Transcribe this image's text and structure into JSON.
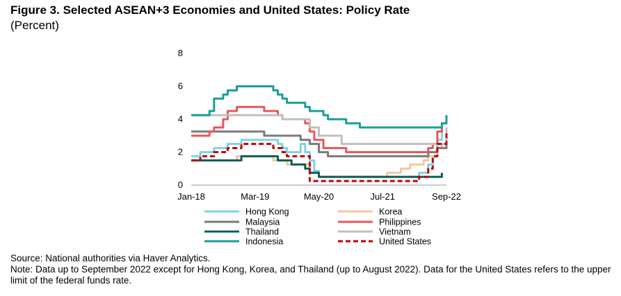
{
  "title": "Figure 3. Selected ASEAN+3 Economies and United States: Policy Rate",
  "subtitle": "(Percent)",
  "source": "Source: National authorities via Haver Analytics.",
  "note": "Note: Data up to September 2022 except for Hong Kong, Korea, and Thailand (up to August 2022). Data for the United States refers to the upper limit of the federal funds rate.",
  "chart_data": {
    "type": "line",
    "y_ticks": [
      0,
      2,
      4,
      6,
      8
    ],
    "ylim": [
      0,
      8
    ],
    "x_start": "2018-01",
    "x_end": "2022-09",
    "x_tick_labels": [
      {
        "label": "Jan-18",
        "month": "2018-01"
      },
      {
        "label": "Mar-19",
        "month": "2019-03"
      },
      {
        "label": "May-20",
        "month": "2020-05"
      },
      {
        "label": "Jul-21",
        "month": "2021-07"
      },
      {
        "label": "Sep-22",
        "month": "2022-09"
      }
    ],
    "legend_position": "bottom",
    "series": [
      {
        "name": "Hong Kong",
        "color": "#7fd3e3",
        "dashed": false,
        "points": [
          [
            "2018-01",
            1.75
          ],
          [
            "2018-03",
            2.0
          ],
          [
            "2018-06",
            2.25
          ],
          [
            "2018-09",
            2.5
          ],
          [
            "2018-12",
            2.75
          ],
          [
            "2019-07",
            2.75
          ],
          [
            "2019-08",
            2.5
          ],
          [
            "2019-09",
            2.25
          ],
          [
            "2019-10",
            2.0
          ],
          [
            "2019-12",
            2.0
          ],
          [
            "2020-01",
            2.5
          ],
          [
            "2020-02",
            2.0
          ],
          [
            "2020-03",
            1.5
          ],
          [
            "2020-04",
            0.86
          ],
          [
            "2020-05",
            0.5
          ],
          [
            "2022-03",
            0.75
          ],
          [
            "2022-05",
            1.25
          ],
          [
            "2022-06",
            1.75
          ],
          [
            "2022-07",
            2.75
          ],
          [
            "2022-08",
            3.5
          ]
        ]
      },
      {
        "name": "Korea",
        "color": "#f5c6a0",
        "dashed": false,
        "points": [
          [
            "2018-01",
            1.5
          ],
          [
            "2018-11",
            1.75
          ],
          [
            "2019-07",
            1.5
          ],
          [
            "2019-10",
            1.25
          ],
          [
            "2020-03",
            0.75
          ],
          [
            "2020-05",
            0.5
          ],
          [
            "2021-08",
            0.75
          ],
          [
            "2021-11",
            1.0
          ],
          [
            "2022-01",
            1.25
          ],
          [
            "2022-04",
            1.5
          ],
          [
            "2022-05",
            1.75
          ],
          [
            "2022-07",
            2.25
          ],
          [
            "2022-08",
            2.5
          ]
        ]
      },
      {
        "name": "Malaysia",
        "color": "#7a7a7a",
        "dashed": false,
        "points": [
          [
            "2018-01",
            3.25
          ],
          [
            "2019-05",
            3.0
          ],
          [
            "2019-12",
            3.0
          ],
          [
            "2020-01",
            2.75
          ],
          [
            "2020-03",
            2.5
          ],
          [
            "2020-05",
            2.0
          ],
          [
            "2020-07",
            1.75
          ],
          [
            "2022-05",
            2.0
          ],
          [
            "2022-07",
            2.25
          ],
          [
            "2022-09",
            2.5
          ]
        ]
      },
      {
        "name": "Philippines",
        "color": "#e8575a",
        "dashed": false,
        "points": [
          [
            "2018-01",
            3.0
          ],
          [
            "2018-05",
            3.25
          ],
          [
            "2018-06",
            3.5
          ],
          [
            "2018-08",
            4.0
          ],
          [
            "2018-09",
            4.5
          ],
          [
            "2018-11",
            4.75
          ],
          [
            "2019-05",
            4.5
          ],
          [
            "2019-08",
            4.25
          ],
          [
            "2019-09",
            4.0
          ],
          [
            "2019-12",
            4.0
          ],
          [
            "2020-02",
            3.75
          ],
          [
            "2020-03",
            3.25
          ],
          [
            "2020-04",
            2.75
          ],
          [
            "2020-06",
            2.25
          ],
          [
            "2020-11",
            2.0
          ],
          [
            "2022-05",
            2.25
          ],
          [
            "2022-06",
            2.5
          ],
          [
            "2022-07",
            3.25
          ],
          [
            "2022-08",
            3.75
          ],
          [
            "2022-09",
            4.25
          ]
        ]
      },
      {
        "name": "Thailand",
        "color": "#0b5e55",
        "dashed": false,
        "points": [
          [
            "2018-01",
            1.5
          ],
          [
            "2018-12",
            1.75
          ],
          [
            "2019-08",
            1.5
          ],
          [
            "2019-11",
            1.25
          ],
          [
            "2020-02",
            1.0
          ],
          [
            "2020-03",
            0.75
          ],
          [
            "2020-05",
            0.5
          ],
          [
            "2022-08",
            0.75
          ]
        ]
      },
      {
        "name": "Vietnam",
        "color": "#bfbfbf",
        "dashed": false,
        "points": [
          [
            "2018-01",
            4.25
          ],
          [
            "2019-09",
            4.0
          ],
          [
            "2020-03",
            3.5
          ],
          [
            "2020-05",
            3.0
          ],
          [
            "2020-10",
            2.5
          ],
          [
            "2022-09",
            3.5
          ]
        ]
      },
      {
        "name": "Indonesia",
        "color": "#1a9e99",
        "dashed": false,
        "points": [
          [
            "2018-01",
            4.25
          ],
          [
            "2018-05",
            4.5
          ],
          [
            "2018-06",
            5.25
          ],
          [
            "2018-08",
            5.5
          ],
          [
            "2018-09",
            5.75
          ],
          [
            "2018-11",
            6.0
          ],
          [
            "2019-07",
            5.75
          ],
          [
            "2019-08",
            5.5
          ],
          [
            "2019-09",
            5.25
          ],
          [
            "2019-10",
            5.0
          ],
          [
            "2020-02",
            4.75
          ],
          [
            "2020-03",
            4.5
          ],
          [
            "2020-06",
            4.25
          ],
          [
            "2020-07",
            4.0
          ],
          [
            "2020-11",
            3.75
          ],
          [
            "2021-02",
            3.5
          ],
          [
            "2022-08",
            3.75
          ],
          [
            "2022-09",
            4.25
          ]
        ]
      },
      {
        "name": "United States",
        "color": "#c00000",
        "dashed": true,
        "points": [
          [
            "2018-01",
            1.5
          ],
          [
            "2018-03",
            1.75
          ],
          [
            "2018-06",
            2.0
          ],
          [
            "2018-09",
            2.25
          ],
          [
            "2018-12",
            2.5
          ],
          [
            "2019-07",
            2.25
          ],
          [
            "2019-09",
            2.0
          ],
          [
            "2019-10",
            1.75
          ],
          [
            "2020-03",
            0.25
          ],
          [
            "2022-03",
            0.5
          ],
          [
            "2022-05",
            1.0
          ],
          [
            "2022-06",
            1.75
          ],
          [
            "2022-07",
            2.5
          ],
          [
            "2022-09",
            3.25
          ]
        ]
      }
    ]
  }
}
